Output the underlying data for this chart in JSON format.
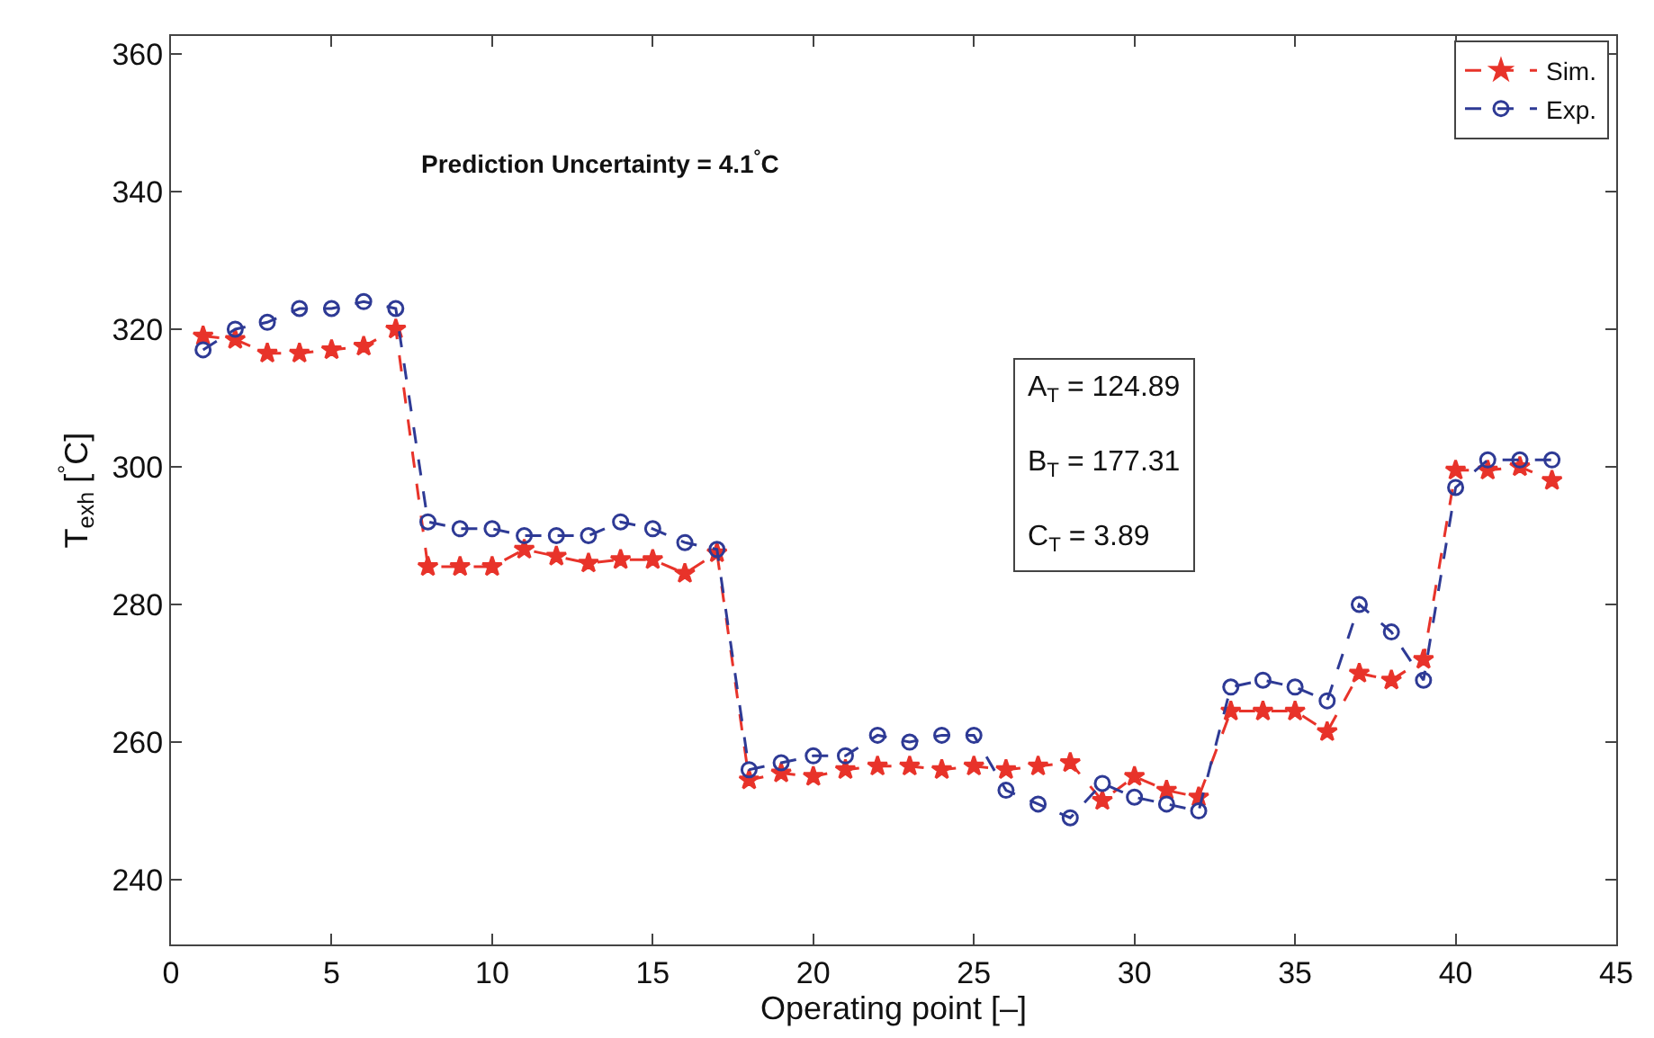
{
  "chart_data": {
    "type": "line",
    "xlabel": "Operating point [–]",
    "ylabel": "T$_{exh}$ [$^{°}$C]",
    "x": [
      1,
      2,
      3,
      4,
      5,
      6,
      7,
      8,
      9,
      10,
      11,
      12,
      13,
      14,
      15,
      16,
      17,
      18,
      19,
      20,
      21,
      22,
      23,
      24,
      25,
      26,
      27,
      28,
      29,
      30,
      31,
      32,
      33,
      34,
      35,
      36,
      37,
      38,
      39,
      40,
      41,
      42,
      43
    ],
    "series": [
      {
        "name": "Sim.",
        "color": "#e8332a",
        "marker": "star",
        "values": [
          319,
          318.5,
          316.5,
          316.5,
          317,
          317.5,
          320,
          285.5,
          285.5,
          285.5,
          288,
          287,
          286,
          286.5,
          286.5,
          284.5,
          287.5,
          254.5,
          255.5,
          255,
          256,
          256.5,
          256.5,
          256,
          256.5,
          256,
          256.5,
          257,
          251.5,
          255,
          253,
          252,
          264.5,
          264.5,
          264.5,
          261.5,
          270,
          269,
          272,
          299.5,
          299.5,
          300,
          298
        ]
      },
      {
        "name": "Exp.",
        "color": "#2e3a95",
        "marker": "circle",
        "values": [
          317,
          320,
          321,
          323,
          323,
          324,
          323,
          292,
          291,
          291,
          290,
          290,
          290,
          292,
          291,
          289,
          288,
          256,
          257,
          258,
          258,
          261,
          260,
          261,
          261,
          253,
          251,
          249,
          254,
          252,
          251,
          250,
          268,
          269,
          268,
          266,
          280,
          276,
          269,
          297,
          301,
          301,
          301
        ]
      }
    ],
    "line_style": "dashed",
    "xlim": [
      0,
      45
    ],
    "xticks": [
      0,
      5,
      10,
      15,
      20,
      25,
      30,
      35,
      40,
      45
    ],
    "ylim": [
      230.6,
      362.6
    ],
    "yticks": [
      240,
      260,
      280,
      300,
      320,
      340,
      360
    ],
    "grid": false,
    "legend": "top right",
    "annotations": [
      "Prediction Uncertainty = 4.1$^{°}$C",
      "A$_{T}$ = 124.89",
      "B$_{T}$ = 177.31",
      "C$_{T}$ = 3.89"
    ]
  }
}
